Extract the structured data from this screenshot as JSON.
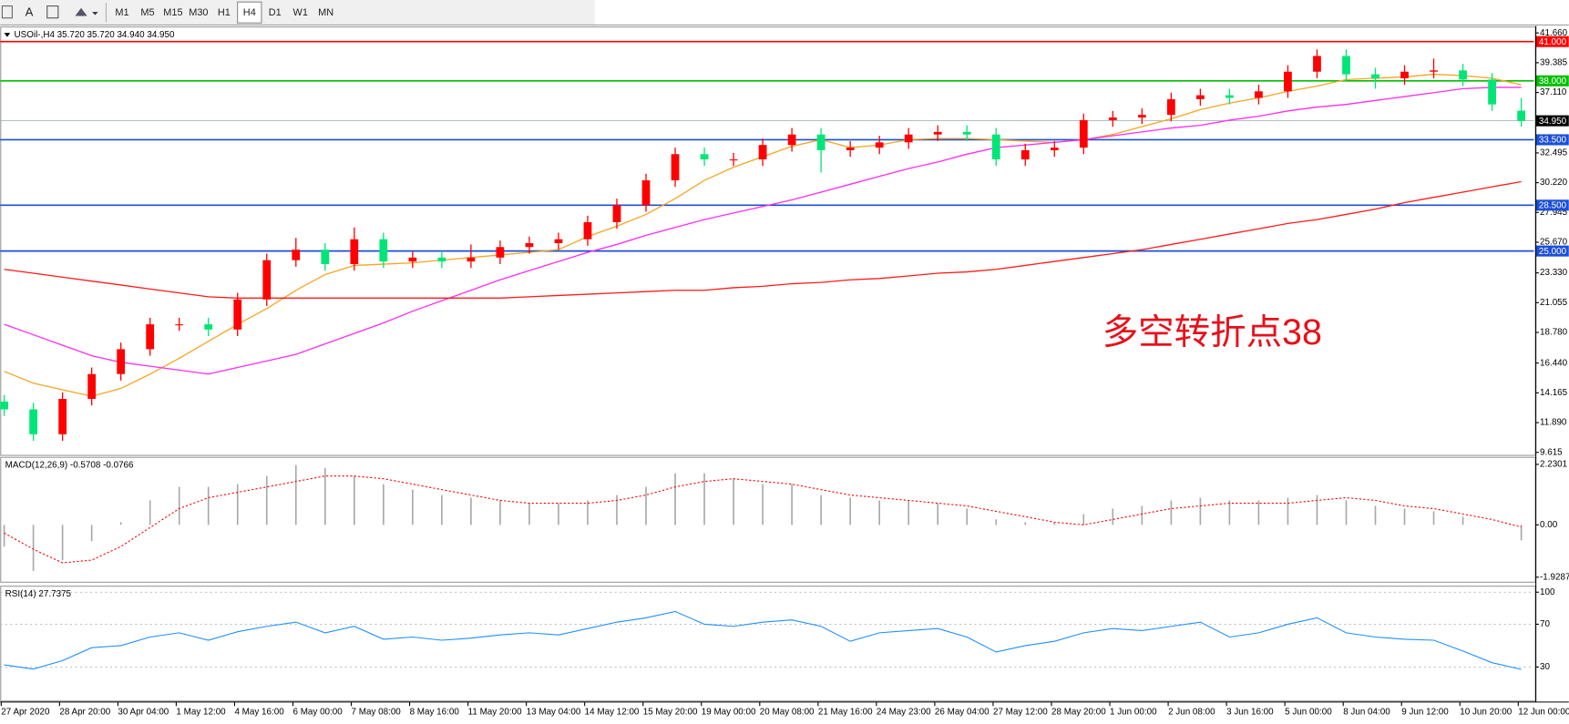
{
  "toolbar": {
    "font_tool": "A",
    "timeframes": [
      "M1",
      "M5",
      "M15",
      "M30",
      "H1",
      "H4",
      "D1",
      "W1",
      "MN"
    ],
    "active_index": 5
  },
  "chart_data": [
    {
      "type": "candlestick",
      "title": "USOil-,H4  35.720 35.720 34.940 34.950",
      "categories": [
        "27 Apr 2020",
        null,
        "28 Apr 20:00",
        null,
        "30 Apr 04:00",
        null,
        "1 May 12:00",
        null,
        "4 May 16:00",
        null,
        "6 May 00:00",
        null,
        "7 May 08:00",
        null,
        "8 May 16:00",
        null,
        "11 May 20:00",
        null,
        "13 May 04:00",
        null,
        "14 May 12:00",
        null,
        "15 May 20:00",
        null,
        "19 May 00:00",
        null,
        "20 May 08:00",
        null,
        "21 May 16:00",
        null,
        "24 May 23:00",
        null,
        "26 May 04:00",
        null,
        "27 May 12:00",
        null,
        "28 May 20:00",
        null,
        "1 Jun 00:00",
        null,
        "2 Jun 08:00",
        null,
        "3 Jun 16:00",
        null,
        "5 Jun 00:00",
        null,
        "8 Jun 04:00",
        null,
        "9 Jun 12:00",
        null,
        "10 Jun 20:00",
        null,
        "12 Jun 00:00"
      ],
      "open": [
        13.5,
        12.9,
        11.0,
        13.7,
        15.6,
        17.5,
        19.4,
        19.4,
        19.0,
        21.3,
        24.3,
        25.1,
        24.0,
        25.9,
        24.2,
        24.5,
        24.2,
        24.5,
        25.3,
        25.6,
        25.9,
        27.2,
        28.5,
        30.4,
        32.4,
        32.0,
        32.0,
        33.1,
        33.9,
        32.7,
        32.9,
        33.3,
        33.9,
        34.1,
        33.9,
        32.0,
        32.7,
        32.9,
        35.0,
        35.2,
        35.4,
        36.6,
        36.9,
        36.7,
        37.2,
        38.7,
        39.9,
        38.5,
        38.2,
        38.7,
        38.8,
        38.1,
        35.72
      ],
      "high": [
        14.0,
        13.4,
        14.2,
        16.1,
        18.0,
        19.9,
        19.9,
        19.9,
        21.8,
        24.8,
        26.0,
        25.6,
        26.8,
        26.4,
        25.0,
        25.0,
        25.5,
        25.8,
        26.1,
        26.4,
        27.7,
        29.0,
        30.9,
        32.9,
        32.9,
        32.5,
        33.6,
        34.4,
        34.4,
        33.4,
        33.8,
        34.4,
        34.6,
        34.6,
        34.4,
        33.2,
        33.4,
        35.5,
        35.7,
        35.9,
        37.1,
        37.4,
        37.4,
        37.7,
        39.2,
        40.4,
        40.4,
        39.0,
        39.2,
        39.7,
        39.3,
        38.6,
        36.7
      ],
      "low": [
        12.4,
        10.5,
        10.5,
        13.2,
        15.1,
        17.0,
        18.9,
        18.5,
        18.5,
        20.8,
        23.8,
        23.5,
        23.5,
        23.7,
        23.7,
        23.7,
        23.7,
        24.0,
        24.8,
        25.1,
        25.4,
        26.7,
        28.0,
        29.9,
        31.5,
        31.5,
        31.5,
        32.6,
        31.0,
        32.2,
        32.4,
        32.8,
        33.4,
        33.4,
        31.5,
        31.5,
        32.2,
        32.4,
        34.5,
        34.7,
        34.9,
        36.1,
        36.2,
        36.2,
        36.7,
        38.2,
        38.0,
        37.4,
        37.7,
        38.2,
        37.6,
        35.7,
        34.5
      ],
      "close": [
        12.9,
        11.0,
        13.7,
        15.6,
        17.5,
        19.4,
        19.4,
        19.0,
        21.3,
        24.3,
        25.1,
        24.0,
        25.9,
        24.2,
        24.5,
        24.2,
        24.5,
        25.3,
        25.6,
        25.9,
        27.2,
        28.5,
        30.4,
        32.4,
        32.0,
        32.0,
        33.1,
        33.9,
        32.7,
        32.9,
        33.3,
        33.9,
        34.1,
        33.9,
        32.0,
        32.7,
        32.9,
        35.0,
        35.2,
        35.4,
        36.6,
        36.9,
        36.7,
        37.2,
        38.7,
        39.9,
        38.5,
        38.2,
        38.7,
        38.8,
        38.1,
        36.2,
        34.95
      ],
      "up_color": "#ff0000",
      "down_color": "#00e676",
      "overlays": [
        {
          "color": "#f5a623",
          "values": [
            15.8,
            14.9,
            14.4,
            13.9,
            14.5,
            15.6,
            16.8,
            18.1,
            19.4,
            20.6,
            22.0,
            23.2,
            23.9,
            24.0,
            24.1,
            24.3,
            24.5,
            24.7,
            24.9,
            25.1,
            26.1,
            26.9,
            27.8,
            29.0,
            30.4,
            31.4,
            32.2,
            33.0,
            33.5,
            32.9,
            33.1,
            33.5,
            33.6,
            33.6,
            33.5,
            33.4,
            33.3,
            33.5,
            33.9,
            34.5,
            35.1,
            35.8,
            36.3,
            36.7,
            37.2,
            37.6,
            38.1,
            38.2,
            38.3,
            38.5,
            38.4,
            38.2,
            37.7
          ]
        },
        {
          "color": "#ff2cf0",
          "values": [
            19.4,
            18.6,
            17.8,
            17.0,
            16.5,
            16.2,
            15.9,
            15.6,
            16.1,
            16.6,
            17.1,
            17.9,
            18.7,
            19.5,
            20.4,
            21.2,
            22.0,
            22.8,
            23.5,
            24.2,
            24.9,
            25.5,
            26.2,
            26.8,
            27.4,
            27.9,
            28.4,
            28.9,
            29.5,
            30.1,
            30.7,
            31.3,
            31.8,
            32.4,
            32.9,
            33.1,
            33.3,
            33.5,
            33.8,
            34.1,
            34.4,
            34.6,
            35.0,
            35.3,
            35.7,
            36.0,
            36.2,
            36.5,
            36.8,
            37.1,
            37.4,
            37.5,
            37.5
          ]
        },
        {
          "color": "#ff1a1a",
          "values": [
            23.6,
            23.3,
            23.0,
            22.7,
            22.4,
            22.1,
            21.8,
            21.5,
            21.4,
            21.4,
            21.4,
            21.4,
            21.4,
            21.4,
            21.4,
            21.4,
            21.4,
            21.4,
            21.5,
            21.6,
            21.7,
            21.8,
            21.9,
            22.0,
            22.0,
            22.2,
            22.3,
            22.5,
            22.6,
            22.8,
            22.9,
            23.1,
            23.3,
            23.4,
            23.6,
            23.9,
            24.2,
            24.5,
            24.8,
            25.1,
            25.5,
            25.9,
            26.3,
            26.7,
            27.1,
            27.4,
            27.8,
            28.2,
            28.7,
            29.1,
            29.5,
            29.9,
            30.3
          ]
        }
      ],
      "levels": [
        {
          "value": 41.0,
          "label": "41.000",
          "color": "#ff0000"
        },
        {
          "value": 38.0,
          "label": "38.000",
          "color": "#00c000"
        },
        {
          "value": 34.95,
          "label": "34.950",
          "color": "#000000"
        },
        {
          "value": 33.5,
          "label": "33.500",
          "color": "#1c4fd6"
        },
        {
          "value": 28.5,
          "label": "28.500",
          "color": "#1c4fd6"
        },
        {
          "value": 25.0,
          "label": "25.000",
          "color": "#1c4fd6"
        }
      ],
      "annotation": "多空转折点38",
      "annotation_color": "#e8101a",
      "ylim": [
        9.615,
        41.66
      ],
      "yticks": [
        9.615,
        {
          "value": 11.89,
          "label": "11.890"
        },
        14.165,
        {
          "value": 16.44,
          "label": "16.440"
        },
        {
          "value": 18.78,
          "label": "18.780"
        },
        21.055,
        {
          "value": 23.33,
          "label": "23.330"
        },
        {
          "value": 25.67,
          "label": "25.670"
        },
        27.945,
        {
          "value": 30.22,
          "label": "30.220"
        },
        32.495,
        {
          "value": 37.11,
          "label": "37.110"
        },
        39.385,
        {
          "value": 41.66,
          "label": "41.660"
        }
      ]
    },
    {
      "type": "bar",
      "title": "MACD(12,26,9) -0.5708 -0.0766",
      "color": "#a8a8a8",
      "values": [
        -0.8,
        -1.7,
        -1.3,
        -0.6,
        0.1,
        0.9,
        1.4,
        1.4,
        1.5,
        1.8,
        2.2,
        2.1,
        1.8,
        1.5,
        1.3,
        1.1,
        1.0,
        0.9,
        0.8,
        0.8,
        0.9,
        1.1,
        1.4,
        1.9,
        1.9,
        1.7,
        1.5,
        1.5,
        1.1,
        1.0,
        0.9,
        0.9,
        0.8,
        0.6,
        0.2,
        0.1,
        0.1,
        0.4,
        0.6,
        0.7,
        0.9,
        1.0,
        0.9,
        0.9,
        1.0,
        1.1,
        0.9,
        0.7,
        0.6,
        0.5,
        0.3,
        0.0,
        -0.5708
      ],
      "signal": {
        "color": "#ff0000",
        "values": [
          -0.3,
          -0.9,
          -1.4,
          -1.3,
          -0.8,
          -0.1,
          0.6,
          1.0,
          1.2,
          1.4,
          1.6,
          1.8,
          1.8,
          1.7,
          1.5,
          1.3,
          1.1,
          0.9,
          0.8,
          0.8,
          0.8,
          0.9,
          1.1,
          1.4,
          1.6,
          1.7,
          1.6,
          1.5,
          1.3,
          1.1,
          1.0,
          0.9,
          0.8,
          0.7,
          0.5,
          0.3,
          0.1,
          0.0,
          0.2,
          0.4,
          0.6,
          0.7,
          0.8,
          0.8,
          0.8,
          0.9,
          1.0,
          0.9,
          0.7,
          0.6,
          0.4,
          0.2,
          -0.0766
        ]
      },
      "ylim": [
        -1.9287,
        2.2301
      ],
      "yticks": [
        -1.9287,
        {
          "value": 0,
          "label": "0.00"
        },
        2.2301
      ]
    },
    {
      "type": "line",
      "title": "RSI(14) 27.7375",
      "color": "#1e8fff",
      "values": [
        32,
        28,
        36,
        48,
        50,
        58,
        62,
        55,
        63,
        68,
        72,
        62,
        68,
        56,
        58,
        55,
        57,
        60,
        62,
        60,
        66,
        72,
        76,
        82,
        70,
        68,
        72,
        74,
        68,
        54,
        62,
        64,
        66,
        58,
        44,
        50,
        54,
        62,
        66,
        64,
        68,
        72,
        58,
        62,
        70,
        76,
        62,
        58,
        56,
        55,
        45,
        34,
        27.7375
      ],
      "ylim": [
        0,
        100
      ],
      "yticks": [
        30,
        70,
        100
      ],
      "grid": true
    }
  ]
}
